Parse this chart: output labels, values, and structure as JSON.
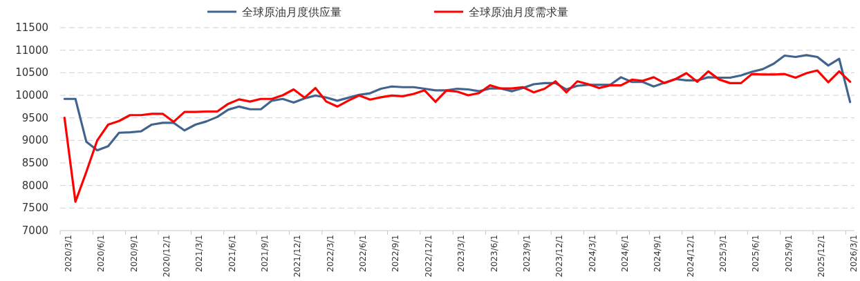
{
  "chart_data": {
    "type": "line",
    "categories": [
      "2020/3/1",
      null,
      null,
      "2020/6/1",
      null,
      null,
      "2020/9/1",
      null,
      null,
      "2020/12/1",
      null,
      null,
      "2021/3/1",
      null,
      null,
      "2021/6/1",
      null,
      null,
      "2021/9/1",
      null,
      null,
      "2021/12/1",
      null,
      null,
      "2022/3/1",
      null,
      null,
      "2022/6/1",
      null,
      null,
      "2022/9/1",
      null,
      null,
      "2022/12/1",
      null,
      null,
      "2023/3/1",
      null,
      null,
      "2023/6/1",
      null,
      null,
      "2023/9/1",
      null,
      null,
      "2023/12/1",
      null,
      null,
      "2024/3/1",
      null,
      null,
      "2024/6/1",
      null,
      null,
      "2024/9/1",
      null,
      null,
      "2024/12/1",
      null,
      null,
      "2025/3/1",
      null,
      null,
      "2025/6/1",
      null,
      null,
      "2025/9/1",
      null,
      null,
      "2025/12/1",
      null,
      null,
      "2026/3/1"
    ],
    "series": [
      {
        "name": "全球原油月度供应量",
        "color": "#41648f",
        "values": [
          9920,
          9920,
          8970,
          8780,
          8870,
          9170,
          9180,
          9200,
          9350,
          9390,
          9390,
          9220,
          9350,
          9420,
          9520,
          9680,
          9750,
          9690,
          9690,
          9880,
          9920,
          9840,
          9930,
          9995,
          9950,
          9880,
          9945,
          10010,
          10045,
          10145,
          10195,
          10180,
          10180,
          10145,
          10110,
          10110,
          10145,
          10130,
          10090,
          10150,
          10150,
          10090,
          10160,
          10245,
          10270,
          10270,
          10130,
          10210,
          10230,
          10230,
          10230,
          10400,
          10295,
          10295,
          10195,
          10280,
          10360,
          10330,
          10330,
          10400,
          10390,
          10390,
          10440,
          10520,
          10580,
          10700,
          10880,
          10850,
          10890,
          10850,
          10660,
          10810,
          9850
        ]
      },
      {
        "name": "全球原油月度需求量",
        "color": "#ff0000",
        "values": [
          9500,
          7640,
          8300,
          9000,
          9350,
          9430,
          9560,
          9560,
          9590,
          9590,
          9410,
          9630,
          9630,
          9640,
          9640,
          9810,
          9910,
          9860,
          9920,
          9920,
          10000,
          10130,
          9945,
          10160,
          9860,
          9750,
          9880,
          9995,
          9905,
          9955,
          9995,
          9980,
          10030,
          10110,
          9855,
          10105,
          10080,
          10000,
          10050,
          10220,
          10150,
          10150,
          10180,
          10065,
          10145,
          10310,
          10065,
          10310,
          10245,
          10160,
          10220,
          10220,
          10345,
          10320,
          10400,
          10270,
          10360,
          10490,
          10300,
          10530,
          10350,
          10270,
          10270,
          10470,
          10460,
          10460,
          10470,
          10390,
          10490,
          10550,
          10290,
          10530,
          10300
        ]
      }
    ],
    "ylim": [
      7000,
      11500
    ],
    "yticks": [
      7000,
      7500,
      8000,
      8500,
      9000,
      9500,
      10000,
      10500,
      11000,
      11500
    ],
    "grid": "y",
    "legend": "top",
    "marker": "none",
    "line_style": "solid"
  }
}
